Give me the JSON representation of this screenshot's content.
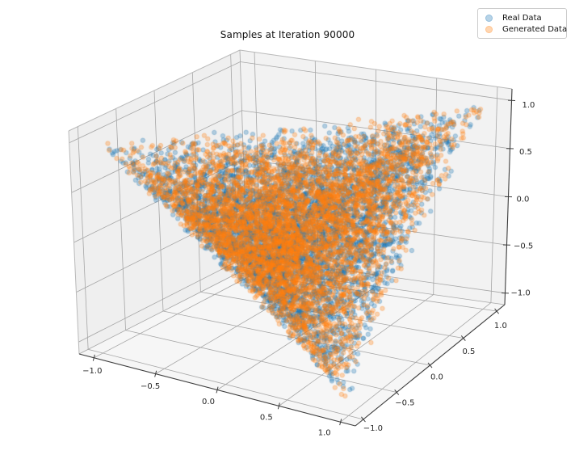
{
  "title": "Samples at Iteration 90000",
  "legend": {
    "items": [
      {
        "label": "Real Data",
        "color": "#1f77b4"
      },
      {
        "label": "Generated Data",
        "color": "#ff7f0e"
      }
    ]
  },
  "chart_data": {
    "type": "scatter",
    "subtype": "scatter3d",
    "title": "Samples at Iteration 90000",
    "view": {
      "elev": 30,
      "azim": -60,
      "projection": "3d"
    },
    "grid": true,
    "legend_position": "upper right",
    "axes": {
      "x": {
        "range": [
          -1.12,
          1.12
        ],
        "ticks": [
          -1.0,
          -0.5,
          0.0,
          0.5,
          1.0
        ],
        "tick_labels": [
          "−1.0",
          "−0.5",
          "0.0",
          "0.5",
          "1.0"
        ],
        "label": ""
      },
      "y": {
        "range": [
          -1.12,
          1.12
        ],
        "ticks": [
          -1.0,
          -0.5,
          0.0,
          0.5,
          1.0
        ],
        "tick_labels": [
          "−1.0",
          "−0.5",
          "0.0",
          "0.5",
          "1.0"
        ],
        "label": ""
      },
      "z": {
        "range": [
          -1.12,
          1.12
        ],
        "ticks": [
          -1.0,
          -0.5,
          0.0,
          0.5,
          1.0
        ],
        "tick_labels": [
          "−1.0",
          "−0.5",
          "0.0",
          "0.5",
          "1.0"
        ],
        "label": ""
      }
    },
    "series": [
      {
        "name": "Real Data",
        "color": "#1f77b4",
        "marker": "circle",
        "marker_alpha": 0.3,
        "marker_radius_px": 2.7,
        "count": 5000,
        "seed": 42,
        "distribution": {
          "kind": "uniform-in-tetrahedron",
          "vertices": [
            [
              1,
              1,
              1
            ],
            [
              -1,
              -1,
              1
            ],
            [
              -1,
              1,
              -1
            ],
            [
              1,
              -1,
              -1
            ]
          ]
        }
      },
      {
        "name": "Generated Data",
        "color": "#ff7f0e",
        "marker": "circle",
        "marker_alpha": 0.3,
        "marker_radius_px": 2.7,
        "count": 5000,
        "seed": 1337,
        "distribution": {
          "kind": "uniform-in-tetrahedron",
          "vertices": [
            [
              1,
              1,
              1
            ],
            [
              -1,
              -1,
              1
            ],
            [
              -1,
              1,
              -1
            ],
            [
              1,
              -1,
              -1
            ]
          ]
        }
      }
    ],
    "colors": {
      "pane_left": "#efefef",
      "pane_right": "#f2f2f2",
      "pane_bottom": "#f6f6f6",
      "grid_line": "#a6a6a6",
      "pane_edge": "#b9b9b9",
      "axis_spine": "#3d3d3d",
      "tick_label": "#262626",
      "background": "#ffffff"
    }
  }
}
